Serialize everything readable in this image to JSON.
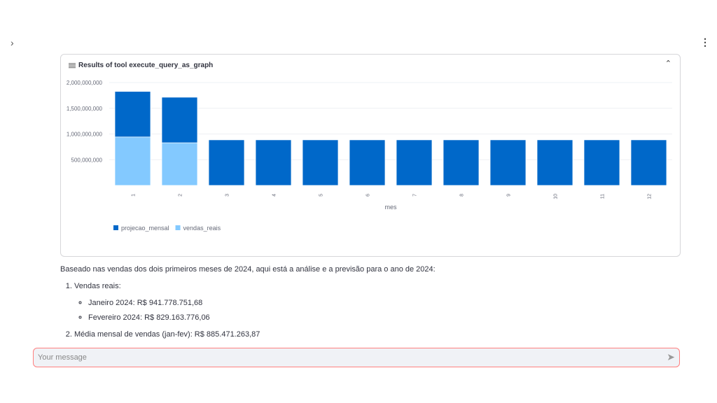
{
  "card": {
    "title": "Results of tool execute_query_as_graph",
    "icon": "newspaper-icon"
  },
  "chart_data": {
    "type": "bar",
    "stacked": true,
    "categories": [
      "1",
      "2",
      "3",
      "4",
      "5",
      "6",
      "7",
      "8",
      "9",
      "10",
      "11",
      "12"
    ],
    "series": [
      {
        "name": "vendas_reais",
        "color": "#83c9ff",
        "values": [
          941778751.68,
          829163776.06,
          0,
          0,
          0,
          0,
          0,
          0,
          0,
          0,
          0,
          0
        ]
      },
      {
        "name": "projecao_mensal",
        "color": "#0068c9",
        "values": [
          885471263.87,
          885471263.87,
          885471263.87,
          885471263.87,
          885471263.87,
          885471263.87,
          885471263.87,
          885471263.87,
          885471263.87,
          885471263.87,
          885471263.87,
          885471263.87
        ]
      }
    ],
    "legend_order": [
      "projecao_mensal",
      "vendas_reais"
    ],
    "yticks": [
      "500,000,000",
      "1,000,000,000",
      "1,500,000,000",
      "2,000,000,000"
    ],
    "ytick_values": [
      500000000,
      1000000000,
      1500000000,
      2000000000
    ],
    "xlabel": "mes",
    "ylabel": "",
    "ylim": [
      0,
      2000000000
    ],
    "grid": true,
    "legend": "bottom-left"
  },
  "message": {
    "intro": "Baseado nas vendas dos dois primeiros meses de 2024, aqui está a análise e a previsão para o ano de 2024:",
    "item1": "Vendas reais:",
    "sub1": "Janeiro 2024: R$ 941.778.751,68",
    "sub2": "Fevereiro 2024: R$ 829.163.776,06",
    "item2": "Média mensal de vendas (jan-fev): R$ 885.471.263,87"
  },
  "input": {
    "placeholder": "Your message"
  }
}
